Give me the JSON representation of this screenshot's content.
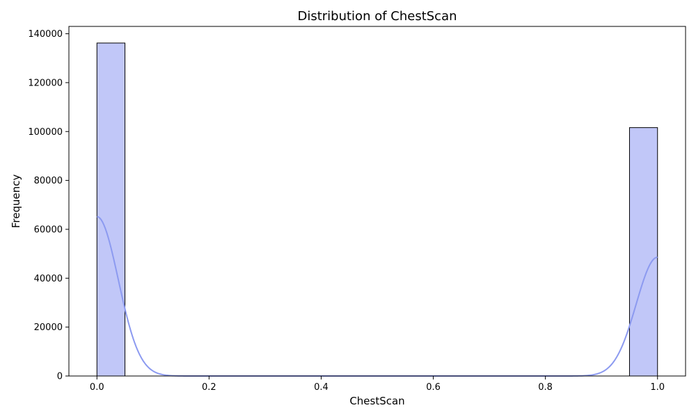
{
  "chart_data": {
    "type": "bar",
    "subtype": "histogram-with-kde",
    "title": "Distribution of ChestScan",
    "xlabel": "ChestScan",
    "ylabel": "Frequency",
    "xlim": [
      -0.05,
      1.05
    ],
    "ylim": [
      0,
      143000
    ],
    "xticks": [
      0.0,
      0.2,
      0.4,
      0.6,
      0.8,
      1.0
    ],
    "xtick_labels": [
      "0.0",
      "0.2",
      "0.4",
      "0.6",
      "0.8",
      "1.0"
    ],
    "yticks": [
      0,
      20000,
      40000,
      60000,
      80000,
      100000,
      120000,
      140000
    ],
    "ytick_labels": [
      "0",
      "20000",
      "40000",
      "60000",
      "80000",
      "100000",
      "120000",
      "140000"
    ],
    "bins": [
      {
        "x0": 0.0,
        "x1": 0.05,
        "count": 136200
      },
      {
        "x0": 0.95,
        "x1": 1.0,
        "count": 101600
      }
    ],
    "kde": {
      "components": [
        {
          "center": 0.0,
          "peak": 65200,
          "bandwidth": 0.038
        },
        {
          "center": 1.0,
          "peak": 48600,
          "bandwidth": 0.038
        }
      ],
      "x_range": [
        0.0,
        1.0
      ]
    },
    "bar_color": "#c1c7f8",
    "bar_edge_color": "#000000",
    "kde_color": "#8c9af0",
    "grid": false,
    "legend": "none"
  }
}
